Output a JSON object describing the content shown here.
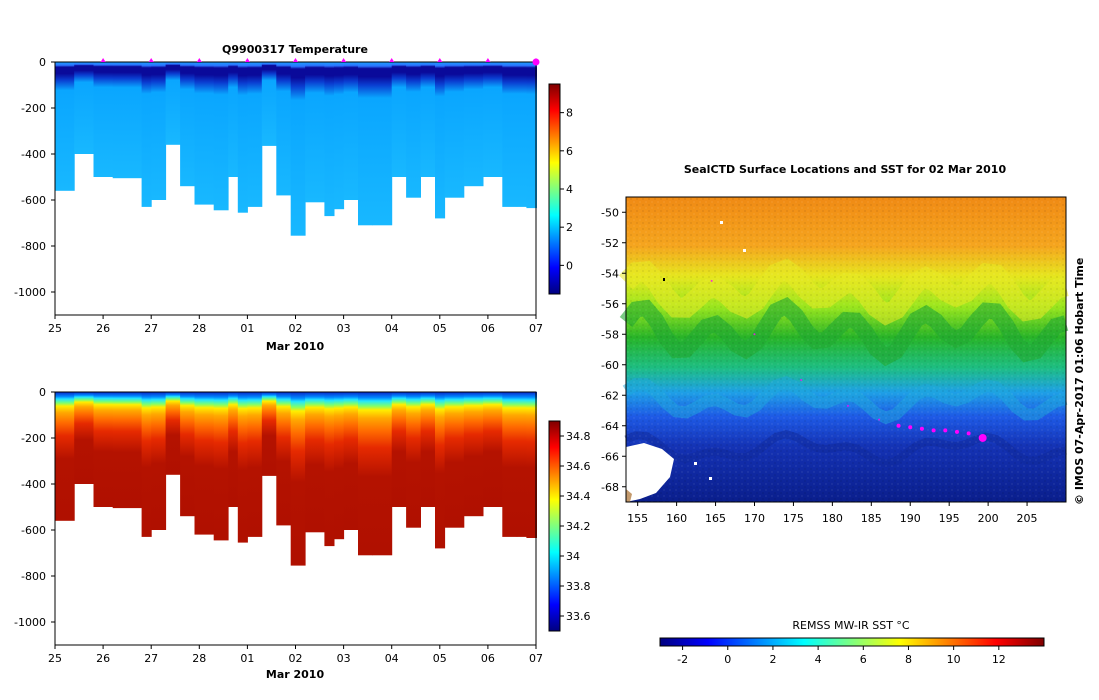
{
  "chart_data": [
    {
      "type": "heatmap",
      "title": "Q9900317  Temperature",
      "variable": "temperature",
      "xlabel": "Mar 2010",
      "x_tick_labels": [
        "25",
        "26",
        "27",
        "28",
        "01",
        "02",
        "03",
        "04",
        "05",
        "06",
        "07"
      ],
      "x_range_days": [
        0,
        10
      ],
      "y_tick_labels": [
        "0",
        "-200",
        "-400",
        "-600",
        "-800",
        "-1000"
      ],
      "y_ticks": [
        0,
        -200,
        -400,
        -600,
        -800,
        -1000
      ],
      "ylim": [
        -1100,
        0
      ],
      "colorbar": {
        "tick_labels": [
          "0",
          "2",
          "4",
          "6",
          "8"
        ],
        "ticks": [
          0,
          2,
          4,
          6,
          8
        ],
        "range": [
          -1.5,
          9.5
        ]
      },
      "profile_marker_days": [
        1,
        2,
        3,
        4,
        5,
        6,
        7,
        8,
        9,
        10
      ],
      "profile_depths": [
        {
          "day": 0.0,
          "depth": 560
        },
        {
          "day": 0.4,
          "depth": 400
        },
        {
          "day": 0.8,
          "depth": 500
        },
        {
          "day": 1.2,
          "depth": 505
        },
        {
          "day": 1.8,
          "depth": 630
        },
        {
          "day": 2.0,
          "depth": 600
        },
        {
          "day": 2.3,
          "depth": 360
        },
        {
          "day": 2.6,
          "depth": 540
        },
        {
          "day": 2.9,
          "depth": 620
        },
        {
          "day": 3.3,
          "depth": 645
        },
        {
          "day": 3.6,
          "depth": 500
        },
        {
          "day": 3.8,
          "depth": 655
        },
        {
          "day": 4.0,
          "depth": 630
        },
        {
          "day": 4.3,
          "depth": 365
        },
        {
          "day": 4.6,
          "depth": 580
        },
        {
          "day": 4.9,
          "depth": 755
        },
        {
          "day": 5.2,
          "depth": 610
        },
        {
          "day": 5.6,
          "depth": 670
        },
        {
          "day": 5.8,
          "depth": 640
        },
        {
          "day": 6.0,
          "depth": 600
        },
        {
          "day": 6.3,
          "depth": 710
        },
        {
          "day": 6.6,
          "depth": 710
        },
        {
          "day": 7.0,
          "depth": 500
        },
        {
          "day": 7.3,
          "depth": 590
        },
        {
          "day": 7.6,
          "depth": 500
        },
        {
          "day": 7.9,
          "depth": 680
        },
        {
          "day": 8.1,
          "depth": 590
        },
        {
          "day": 8.5,
          "depth": 540
        },
        {
          "day": 8.9,
          "depth": 500
        },
        {
          "day": 9.3,
          "depth": 630
        },
        {
          "day": 9.6,
          "depth": 630
        },
        {
          "day": 9.8,
          "depth": 635
        },
        {
          "day": 10.0,
          "depth": 635
        }
      ]
    },
    {
      "type": "heatmap",
      "title": "",
      "variable": "salinity",
      "xlabel": "Mar 2010",
      "x_tick_labels": [
        "25",
        "26",
        "27",
        "28",
        "01",
        "02",
        "03",
        "04",
        "05",
        "06",
        "07"
      ],
      "x_range_days": [
        0,
        10
      ],
      "y_tick_labels": [
        "0",
        "-200",
        "-400",
        "-600",
        "-800",
        "-1000"
      ],
      "y_ticks": [
        0,
        -200,
        -400,
        -600,
        -800,
        -1000
      ],
      "ylim": [
        -1100,
        0
      ],
      "colorbar": {
        "tick_labels": [
          "33.6",
          "33.8",
          "34",
          "34.2",
          "34.4",
          "34.6",
          "34.8"
        ],
        "ticks": [
          33.6,
          33.8,
          34.0,
          34.2,
          34.4,
          34.6,
          34.8
        ],
        "range": [
          33.5,
          34.9
        ]
      }
    },
    {
      "type": "heatmap",
      "title": "SealCTD Surface Locations and SST for 02 Mar 2010",
      "variable": "sst",
      "x_tick_labels": [
        "155",
        "160",
        "165",
        "170",
        "175",
        "180",
        "185",
        "190",
        "195",
        "200",
        "205"
      ],
      "x_ticks": [
        155,
        160,
        165,
        170,
        175,
        180,
        185,
        190,
        195,
        200,
        205
      ],
      "xlim": [
        153.5,
        210
      ],
      "y_tick_labels": [
        "-50",
        "-52",
        "-54",
        "-56",
        "-58",
        "-60",
        "-62",
        "-64",
        "-66",
        "-68"
      ],
      "y_ticks": [
        -50,
        -52,
        -54,
        -56,
        -58,
        -60,
        -62,
        -64,
        -66,
        -68
      ],
      "ylim": [
        -69,
        -49
      ],
      "track": [
        {
          "lon": 188.5,
          "lat": -64.0
        },
        {
          "lon": 190.0,
          "lat": -64.1
        },
        {
          "lon": 191.5,
          "lat": -64.2
        },
        {
          "lon": 193.0,
          "lat": -64.3
        },
        {
          "lon": 194.5,
          "lat": -64.3
        },
        {
          "lon": 196.0,
          "lat": -64.4
        },
        {
          "lon": 197.5,
          "lat": -64.5
        }
      ],
      "track_end": {
        "lon": 199.3,
        "lat": -64.8
      },
      "track_faint": [
        {
          "lon": 164.5,
          "lat": -54.5
        },
        {
          "lon": 170.0,
          "lat": -58.0
        },
        {
          "lon": 176.0,
          "lat": -61.0
        },
        {
          "lon": 182.0,
          "lat": -62.7
        },
        {
          "lon": 186.0,
          "lat": -63.6
        }
      ],
      "colorbar_title": "REMSS MW-IR SST °C",
      "colorbar": {
        "tick_labels": [
          "-2",
          "0",
          "2",
          "4",
          "6",
          "8",
          "10",
          "12"
        ],
        "ticks": [
          -2,
          0,
          2,
          4,
          6,
          8,
          10,
          12
        ],
        "range": [
          -3,
          14
        ]
      }
    }
  ],
  "credit": "© IMOS 07-Apr-2017 01:06 Hobart Time",
  "colors": {
    "jet": [
      "#00007f",
      "#0000ff",
      "#007fff",
      "#00ffff",
      "#7fff7f",
      "#ffff00",
      "#ff7f00",
      "#ff0000",
      "#7f0000"
    ],
    "marker": "#ff00ff",
    "axis": "#000000"
  }
}
